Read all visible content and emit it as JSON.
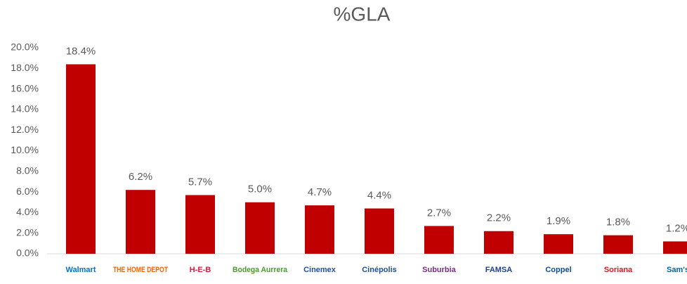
{
  "chart_data": {
    "type": "bar",
    "title": "%GLA",
    "categories": [
      "Walmart",
      "THE HOME DEPOT",
      "H-E-B",
      "Bodega Aurrera",
      "Cinemex",
      "Cinépolis",
      "Suburbia",
      "FAMSA",
      "Coppel",
      "Soriana",
      "Sam's"
    ],
    "category_colors": [
      "#0071ce",
      "#f96302",
      "#e31837",
      "#4a9a2c",
      "#1e4ea1",
      "#1d4f9c",
      "#7b2a8c",
      "#1c3f94",
      "#0c4ea2",
      "#d71920",
      "#0063a5"
    ],
    "values": [
      18.4,
      6.2,
      5.7,
      5.0,
      4.7,
      4.4,
      2.7,
      2.2,
      1.9,
      1.8,
      1.2
    ],
    "value_labels": [
      "18.4%",
      "6.2%",
      "5.7%",
      "5.0%",
      "4.7%",
      "4.4%",
      "2.7%",
      "2.2%",
      "1.9%",
      "1.8%",
      "1.2%"
    ],
    "color": "#c00000",
    "ylim": [
      0,
      20
    ],
    "yticks": [
      {
        "value": 0,
        "label": "0.0%"
      },
      {
        "value": 2,
        "label": "2.0%"
      },
      {
        "value": 4,
        "label": "4.0%"
      },
      {
        "value": 6,
        "label": "6.0%"
      },
      {
        "value": 8,
        "label": "8.0%"
      },
      {
        "value": 10,
        "label": "10.0%"
      },
      {
        "value": 12,
        "label": "12.0%"
      },
      {
        "value": 14,
        "label": "14.0%"
      },
      {
        "value": 16,
        "label": "16.0%"
      },
      {
        "value": 18,
        "label": "18.0%"
      },
      {
        "value": 20,
        "label": "20.0%"
      }
    ],
    "grid": false
  }
}
